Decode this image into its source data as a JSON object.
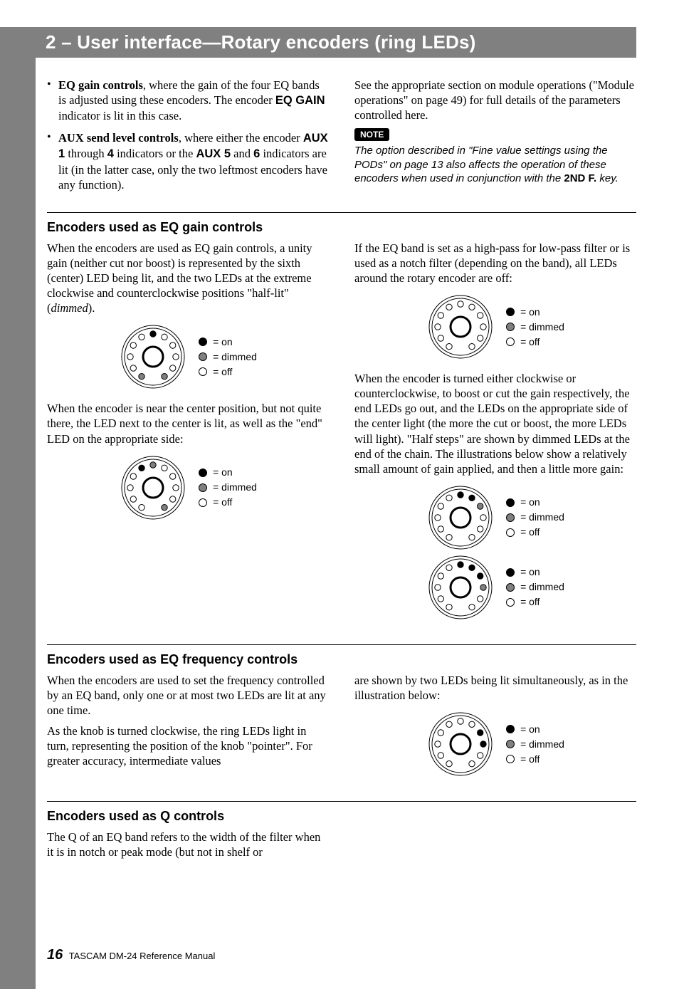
{
  "header": {
    "title": "2 – User interface—Rotary encoders (ring LEDs)"
  },
  "intro": {
    "bullets": [
      {
        "prefix": "EQ gain controls",
        "rest": ", where the gain of the four EQ bands is adjusted using these encoders. The encoder ",
        "mid_bold": "EQ GAIN",
        "tail": " indicator is lit in this case."
      },
      {
        "prefix": "AUX send level controls",
        "rest": ", where either the encoder ",
        "b1": "AUX 1",
        "t1": " through ",
        "b2": "4",
        "t2": " indicators or the ",
        "b3": "AUX 5",
        "t3": " and ",
        "b4": "6",
        "tail": " indicators are lit (in the latter case, only the two leftmost encoders have any function)."
      }
    ],
    "right_para": "See the appropriate section on module operations (\"Module operations\" on page 49) for full details of the parameters controlled here.",
    "note_label": "NOTE",
    "note_text_1": "The option described in \"Fine value settings using the PODs\" on page 13 also affects the operation of these encoders when used in conjunction with the ",
    "note_bold": "2ND F.",
    "note_text_2": " key."
  },
  "legend_labels": {
    "on": "= on",
    "dimmed": "= dimmed",
    "off": "= off"
  },
  "eq_gain": {
    "heading": "Encoders used as EQ gain controls",
    "left_p1": "When the encoders are used as EQ gain controls, a unity gain (neither cut nor boost) is represented by the sixth (center) LED being lit, and the two LEDs at the extreme clockwise and counterclockwise positions \"half-lit\" (",
    "left_p1_em": "dimmed",
    "left_p1_tail": ").",
    "left_p2": "When the encoder is near the center position, but not quite there, the LED next to the center is lit, as well as the \"end\" LED on the appropriate side:",
    "right_p1": "If the EQ band is set as a high-pass for low-pass filter or is used as a notch filter (depending on the band), all LEDs around the rotary encoder are off:",
    "right_p2": "When the encoder is turned either clockwise or counterclockwise, to boost or cut the gain respectively, the end LEDs go out, and the LEDs on the appropriate side of the center light (the more the cut or boost, the more LEDs will light). \"Half steps\" are shown by dimmed LEDs at the end of the chain. The illustrations below show a relatively small amount of gain applied, and then a little more gain:"
  },
  "eq_freq": {
    "heading": "Encoders used as EQ frequency controls",
    "left_p1": "When the encoders are used to set the frequency controlled by an EQ band, only one or at most two LEDs are lit at any one time.",
    "left_p2": "As the knob is turned clockwise, the ring LEDs light in turn, representing the position of the knob \"pointer\". For greater accuracy, intermediate values",
    "right_p1": "are shown by two LEDs being lit simultaneously, as in the illustration below:"
  },
  "q_section": {
    "heading": "Encoders used as Q controls",
    "left_p1": "The Q of an EQ band refers to the width of the filter when it is in notch or peak mode (but not in shelf or"
  },
  "footer": {
    "page": "16",
    "text": "TASCAM DM-24 Reference Manual"
  },
  "ring_diagrams": {
    "led_positions_deg": [
      -150,
      -120,
      -90,
      -60,
      -30,
      0,
      30,
      60,
      90,
      120,
      150
    ],
    "colors": {
      "on": "#000000",
      "dimmed": "#808080",
      "off": "#ffffff",
      "stroke": "#000000"
    },
    "geometry": {
      "size": 96,
      "outer_r": 44,
      "outer_r2": 40,
      "led_orbit": 32,
      "led_r": 4.2,
      "knob_r": 14,
      "knob_stroke": 3
    },
    "fig_unity": [
      "dimmed",
      "off",
      "off",
      "off",
      "off",
      "on",
      "off",
      "off",
      "off",
      "off",
      "dimmed"
    ],
    "fig_near_center": [
      "off",
      "off",
      "off",
      "off",
      "on",
      "dimmed",
      "off",
      "off",
      "off",
      "off",
      "dimmed"
    ],
    "fig_all_off": [
      "off",
      "off",
      "off",
      "off",
      "off",
      "off",
      "off",
      "off",
      "off",
      "off",
      "off"
    ],
    "fig_small_boost": [
      "off",
      "off",
      "off",
      "off",
      "off",
      "on",
      "on",
      "dimmed",
      "off",
      "off",
      "off"
    ],
    "fig_more_boost": [
      "off",
      "off",
      "off",
      "off",
      "off",
      "on",
      "on",
      "on",
      "dimmed",
      "off",
      "off"
    ],
    "fig_freq_two": [
      "off",
      "off",
      "off",
      "off",
      "off",
      "off",
      "off",
      "on",
      "on",
      "off",
      "off"
    ]
  }
}
